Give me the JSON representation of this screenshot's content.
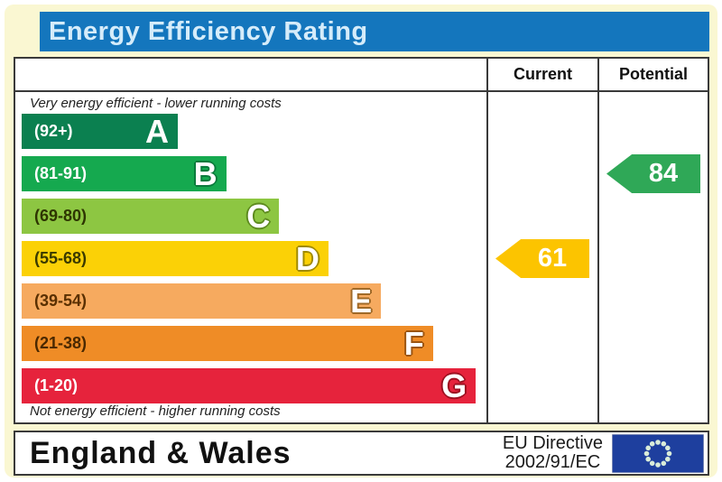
{
  "page": {
    "background": "#faf7d2",
    "frame_color": "#ffffff"
  },
  "header": {
    "title": "Energy Efficiency Rating",
    "bar_color": "#1476bd",
    "text_color": "#d5ecfa"
  },
  "table": {
    "columns": {
      "current": "Current",
      "potential": "Potential"
    },
    "top_note": "Very energy efficient - lower running costs",
    "bottom_note": "Not energy efficient - higher running costs"
  },
  "chart_data": {
    "type": "bar",
    "title": "Energy Efficiency Rating",
    "bands": [
      {
        "letter": "A",
        "range": "(92+)",
        "color": "#0b8050",
        "label_color": "#ffffff",
        "letter_outline": null,
        "width_pct": 33.6
      },
      {
        "letter": "B",
        "range": "(81-91)",
        "color": "#15a94f",
        "label_color": "#ffffff",
        "letter_outline": "#0a7a3c",
        "width_pct": 44.0
      },
      {
        "letter": "C",
        "range": "(69-80)",
        "color": "#8dc642",
        "label_color": "#2e3500",
        "letter_outline": "#5d8a1e",
        "width_pct": 55.4
      },
      {
        "letter": "D",
        "range": "(55-68)",
        "color": "#fbd106",
        "label_color": "#3a3a00",
        "letter_outline": "#a08a00",
        "width_pct": 66.0
      },
      {
        "letter": "E",
        "range": "(39-54)",
        "color": "#f6aa5f",
        "label_color": "#5a3000",
        "letter_outline": "#a06a28",
        "width_pct": 77.3
      },
      {
        "letter": "F",
        "range": "(21-38)",
        "color": "#ef8c26",
        "label_color": "#4a2800",
        "letter_outline": "#9c5510",
        "width_pct": 88.5
      },
      {
        "letter": "G",
        "range": "(1-20)",
        "color": "#e6233c",
        "label_color": "#ffffff",
        "letter_outline": "#9c1020",
        "width_pct": 97.7
      }
    ],
    "current": {
      "value": 61,
      "band": "D",
      "color": "#fcc400"
    },
    "potential": {
      "value": 84,
      "band": "B",
      "color": "#2fa857"
    }
  },
  "footer": {
    "region": "England & Wales",
    "directive_line1": "EU Directive",
    "directive_line2": "2002/91/EC",
    "eu_flag_icon": "eu-flag-icon",
    "flag_blue": "#1e3f9e",
    "star_color": "#d9ecd9"
  }
}
